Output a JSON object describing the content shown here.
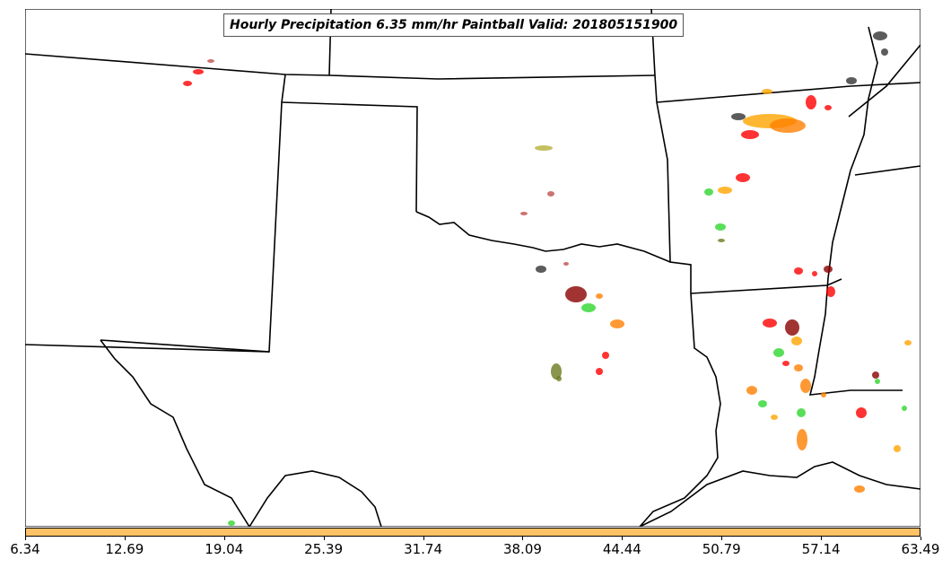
{
  "title": "Hourly Precipitation 6.35 mm/hr Paintball Valid: 201805151900",
  "colorbar": {
    "color": "#ffc266",
    "ticks": [
      "6.34",
      "12.69",
      "19.04",
      "25.39",
      "31.74",
      "38.09",
      "44.44",
      "50.79",
      "57.14",
      "63.49"
    ]
  },
  "map": {
    "border_color": "#000000",
    "ocean_background": "#ffffff",
    "paintball_colors": [
      "#8b0000",
      "#ff0000",
      "#ff7f00",
      "#ffa500",
      "#2fd62f",
      "#6b7a1f",
      "#b5b03a",
      "#333333",
      "#c0504d"
    ]
  }
}
